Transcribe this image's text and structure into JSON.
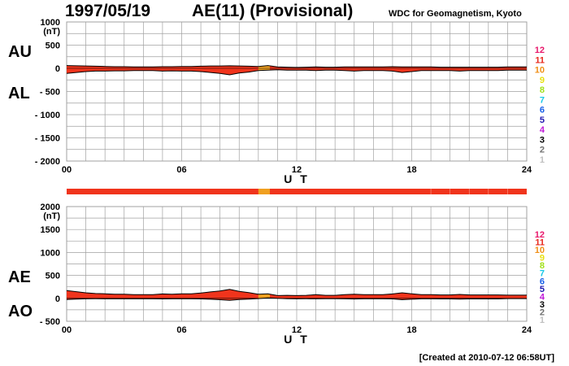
{
  "header": {
    "date": "1997/05/19",
    "title": "AE(11) (Provisional)",
    "source": "WDC for Geomagnetism, Kyoto"
  },
  "footer": {
    "created": "[Created at 2010-07-12 06:58UT]"
  },
  "colors": {
    "fill": "#f0341c",
    "highlight": "#f0a020",
    "grid": "#a0a0a0",
    "trace": "#000000"
  },
  "station_count_legend": [
    {
      "label": "12",
      "color": "#e8186c"
    },
    {
      "label": "11",
      "color": "#e8281c"
    },
    {
      "label": "10",
      "color": "#f09018"
    },
    {
      "label": "9",
      "color": "#e8e010"
    },
    {
      "label": "8",
      "color": "#a0e018"
    },
    {
      "label": "7",
      "color": "#18c8e8"
    },
    {
      "label": "6",
      "color": "#1860e8"
    },
    {
      "label": "5",
      "color": "#2018b0"
    },
    {
      "label": "4",
      "color": "#c018d8"
    },
    {
      "label": "3",
      "color": "#000000"
    },
    {
      "label": "2",
      "color": "#707070"
    },
    {
      "label": "1",
      "color": "#c0c0c0"
    }
  ],
  "station_bar": {
    "default_color": "#f0341c",
    "segments": [
      {
        "from": 10.0,
        "to": 10.6,
        "color": "#f0a020"
      }
    ]
  },
  "chart_data": [
    {
      "type": "area",
      "name": "AU/AL",
      "labels": {
        "upper": "AU",
        "lower": "AL"
      },
      "unit": "(nT)",
      "xlabel": "U T",
      "xlim": [
        0,
        24
      ],
      "x_ticks": [
        "00",
        "06",
        "12",
        "18",
        "24"
      ],
      "ylim": [
        -2000,
        1000
      ],
      "y_ticks": [
        "1000",
        "500",
        "0",
        "- 500",
        "- 1000",
        "- 1500",
        "- 2000"
      ],
      "highlight_x": [
        10.0,
        10.6
      ],
      "x": [
        0,
        0.5,
        1,
        1.5,
        2,
        2.5,
        3,
        3.5,
        4,
        4.5,
        5,
        5.5,
        6,
        6.5,
        7,
        7.5,
        8,
        8.5,
        9,
        9.5,
        10,
        10.5,
        11,
        11.5,
        12,
        12.5,
        13,
        13.5,
        14,
        14.5,
        15,
        15.5,
        16,
        16.5,
        17,
        17.5,
        18,
        18.5,
        19,
        19.5,
        20,
        20.5,
        21,
        21.5,
        22,
        22.5,
        23,
        23.5,
        24
      ],
      "series": [
        {
          "name": "AU",
          "values": [
            60,
            55,
            50,
            45,
            40,
            35,
            35,
            30,
            30,
            30,
            35,
            35,
            40,
            40,
            45,
            50,
            50,
            55,
            50,
            45,
            40,
            60,
            30,
            25,
            20,
            25,
            30,
            25,
            25,
            30,
            30,
            30,
            30,
            30,
            35,
            30,
            30,
            30,
            30,
            25,
            25,
            25,
            25,
            25,
            25,
            25,
            30,
            30,
            30
          ]
        },
        {
          "name": "AL",
          "values": [
            -110,
            -90,
            -70,
            -60,
            -60,
            -55,
            -55,
            -50,
            -50,
            -50,
            -60,
            -55,
            -60,
            -60,
            -70,
            -90,
            -110,
            -140,
            -100,
            -80,
            -50,
            -40,
            -30,
            -40,
            -40,
            -40,
            -50,
            -40,
            -40,
            -50,
            -60,
            -50,
            -50,
            -50,
            -60,
            -90,
            -70,
            -50,
            -50,
            -50,
            -50,
            -60,
            -50,
            -50,
            -50,
            -50,
            -40,
            -40,
            -40
          ]
        }
      ]
    },
    {
      "type": "area",
      "name": "AE/AO",
      "labels": {
        "upper": "AE",
        "lower": "AO"
      },
      "unit": "(nT)",
      "xlabel": "U T",
      "xlim": [
        0,
        24
      ],
      "x_ticks": [
        "00",
        "06",
        "12",
        "18",
        "24"
      ],
      "ylim": [
        -500,
        2000
      ],
      "y_ticks": [
        "2000",
        "1500",
        "1000",
        "500",
        "0",
        "- 500"
      ],
      "highlight_x": [
        10.0,
        10.6
      ],
      "x": [
        0,
        0.5,
        1,
        1.5,
        2,
        2.5,
        3,
        3.5,
        4,
        4.5,
        5,
        5.5,
        6,
        6.5,
        7,
        7.5,
        8,
        8.5,
        9,
        9.5,
        10,
        10.5,
        11,
        11.5,
        12,
        12.5,
        13,
        13.5,
        14,
        14.5,
        15,
        15.5,
        16,
        16.5,
        17,
        17.5,
        18,
        18.5,
        19,
        19.5,
        20,
        20.5,
        21,
        21.5,
        22,
        22.5,
        23,
        23.5,
        24
      ],
      "series": [
        {
          "name": "AE",
          "values": [
            170,
            145,
            120,
            105,
            100,
            90,
            90,
            80,
            80,
            80,
            95,
            90,
            100,
            100,
            115,
            140,
            160,
            195,
            150,
            125,
            90,
            100,
            60,
            65,
            60,
            65,
            80,
            65,
            65,
            80,
            90,
            80,
            80,
            80,
            95,
            120,
            100,
            80,
            80,
            75,
            75,
            85,
            75,
            75,
            75,
            75,
            70,
            70,
            70
          ]
        },
        {
          "name": "AO",
          "values": [
            -25,
            -18,
            -10,
            -8,
            -10,
            -10,
            -10,
            -10,
            -10,
            -10,
            -12,
            -10,
            -10,
            -10,
            -12,
            -20,
            -30,
            -42,
            -25,
            -18,
            -5,
            10,
            0,
            -8,
            -10,
            -8,
            -10,
            -8,
            -8,
            -10,
            -15,
            -10,
            -10,
            -10,
            -12,
            -30,
            -20,
            -10,
            -10,
            -12,
            -12,
            -18,
            -12,
            -12,
            -12,
            -12,
            -5,
            -5,
            -5
          ]
        }
      ]
    }
  ]
}
